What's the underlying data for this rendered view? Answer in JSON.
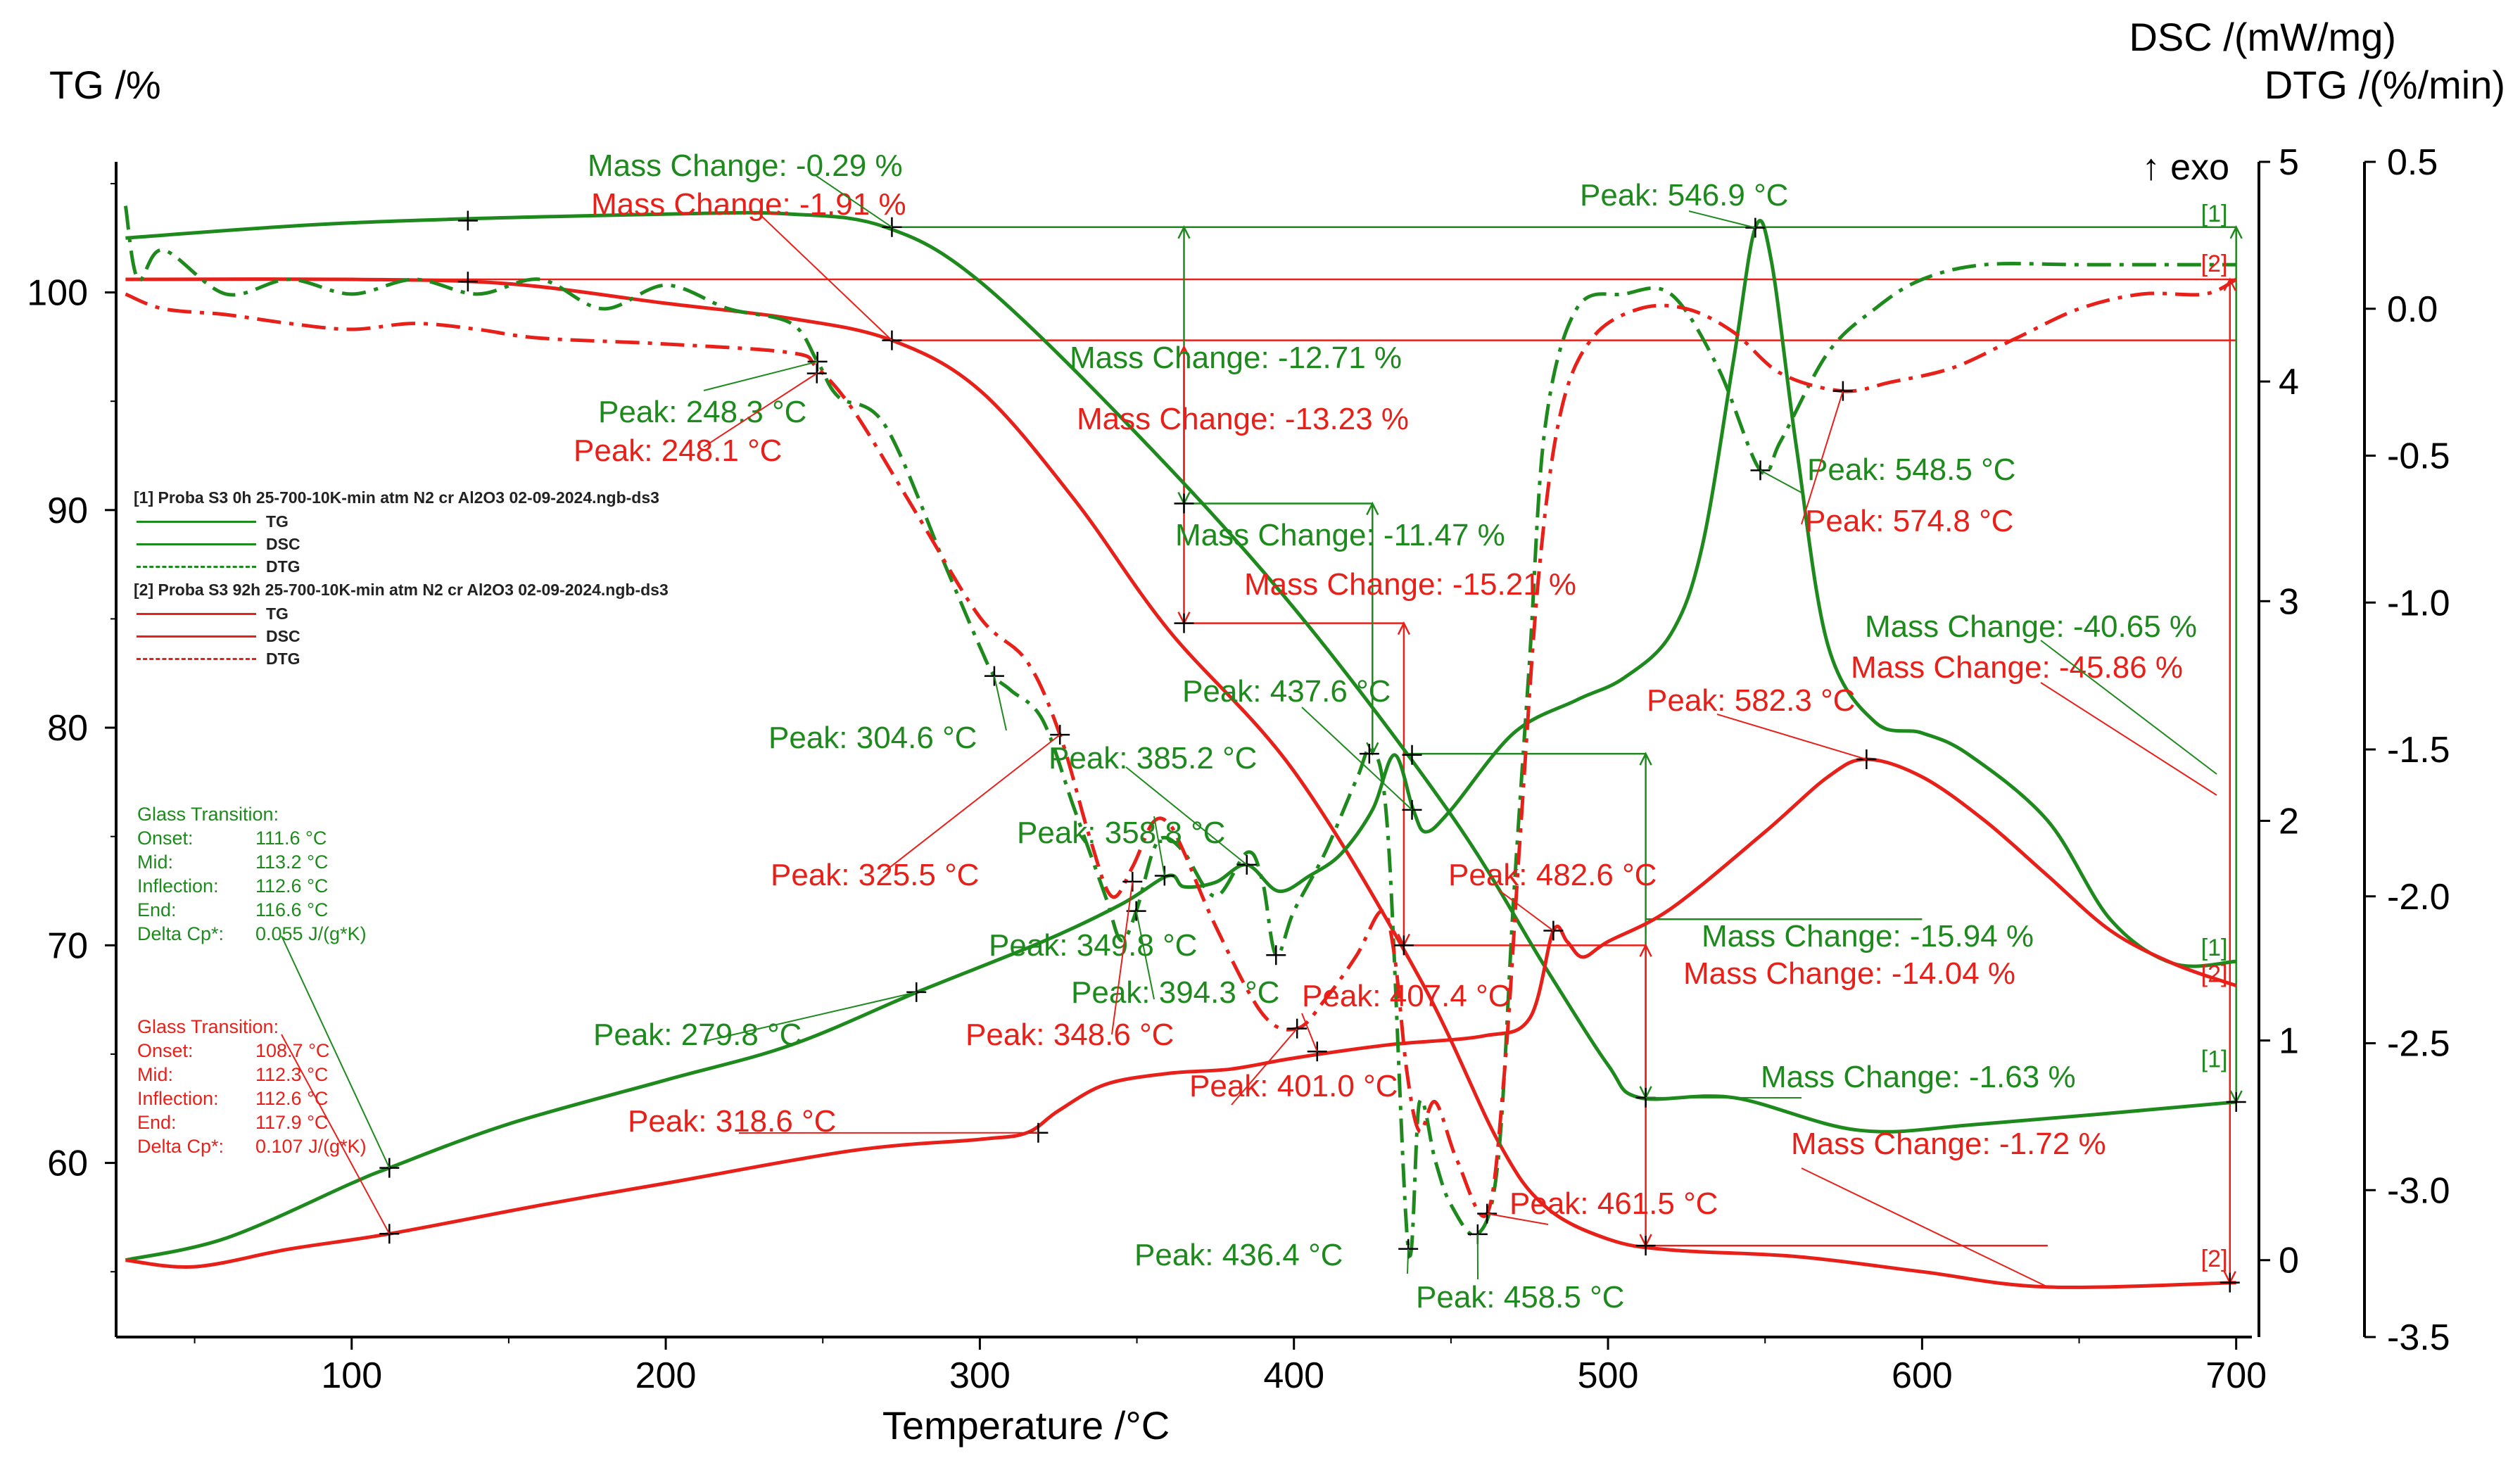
{
  "colors": {
    "green": "#1e8a1e",
    "red": "#e8201a",
    "axis": "#000000"
  },
  "chart_data": {
    "type": "line",
    "xlabel": "Temperature /°C",
    "x_ticks": [
      "100",
      "200",
      "300",
      "400",
      "500",
      "600",
      "700"
    ],
    "xlim": [
      25,
      705
    ],
    "axes": {
      "tg": {
        "label": "TG /%",
        "ylim": [
          52,
          106
        ],
        "ticks": [
          "60",
          "70",
          "80",
          "90",
          "100"
        ]
      },
      "dsc": {
        "label": "DSC /(mW/mg)",
        "exo": "↑ exo",
        "ylim": [
          -0.35,
          5.0
        ],
        "ticks": [
          "0",
          "1",
          "2",
          "3",
          "4",
          "5"
        ]
      },
      "dtg": {
        "label": "DTG /(%/min)",
        "ylim": [
          -3.5,
          0.5
        ],
        "ticks": [
          "0.5",
          "0.0",
          "-0.5",
          "-1.0",
          "-1.5",
          "-2.0",
          "-2.5",
          "-3.0",
          "-3.5"
        ]
      }
    },
    "curve_labels": {
      "s1_tg": "[1]",
      "s1_dsc": "[1]",
      "s1_dtg": "[1]",
      "s2_tg": "[2]",
      "s2_dsc": "[2]",
      "s2_dtg": "[2]"
    },
    "legend": {
      "s1_file": "[1] Proba S3 0h 25-700-10K-min atm N2 cr Al2O3 02-09-2024.ngb-ds3",
      "s2_file": "[2] Proba S3 92h 25-700-10K-min atm N2 cr Al2O3 02-09-2024.ngb-ds3",
      "tg": "TG",
      "dsc": "DSC",
      "dtg": "DTG"
    },
    "series": [
      {
        "name": "[1] TG",
        "axis": "tg",
        "color": "green",
        "style": "solid",
        "points": [
          [
            28,
            102.5
          ],
          [
            100,
            103.2
          ],
          [
            200,
            103.6
          ],
          [
            240,
            103.6
          ],
          [
            270,
            103.0
          ],
          [
            300,
            100.5
          ],
          [
            350,
            93.5
          ],
          [
            400,
            85.5
          ],
          [
            450,
            76.0
          ],
          [
            480,
            69.0
          ],
          [
            500,
            64.5
          ],
          [
            510,
            63.0
          ],
          [
            540,
            63.0
          ],
          [
            580,
            61.5
          ],
          [
            620,
            61.8
          ],
          [
            700,
            62.8
          ]
        ]
      },
      {
        "name": "[2] TG",
        "axis": "tg",
        "color": "red",
        "style": "solid",
        "points": [
          [
            28,
            100.6
          ],
          [
            100,
            100.6
          ],
          [
            150,
            100.4
          ],
          [
            200,
            99.5
          ],
          [
            240,
            98.8
          ],
          [
            272,
            97.8
          ],
          [
            300,
            95.5
          ],
          [
            330,
            90.5
          ],
          [
            360,
            84.5
          ],
          [
            400,
            78.0
          ],
          [
            440,
            68.5
          ],
          [
            465,
            61.0
          ],
          [
            480,
            58.0
          ],
          [
            500,
            56.5
          ],
          [
            520,
            56.0
          ],
          [
            560,
            55.7
          ],
          [
            600,
            55.0
          ],
          [
            640,
            54.3
          ],
          [
            700,
            54.5
          ]
        ]
      },
      {
        "name": "[1] DSC",
        "axis": "dsc",
        "color": "green",
        "style": "solid",
        "points": [
          [
            28,
            0.0
          ],
          [
            60,
            0.1
          ],
          [
            100,
            0.35
          ],
          [
            112,
            0.42
          ],
          [
            150,
            0.62
          ],
          [
            200,
            0.82
          ],
          [
            240,
            0.98
          ],
          [
            280,
            1.22
          ],
          [
            320,
            1.45
          ],
          [
            345,
            1.62
          ],
          [
            360,
            1.75
          ],
          [
            365,
            1.7
          ],
          [
            375,
            1.72
          ],
          [
            385,
            1.8
          ],
          [
            395,
            1.68
          ],
          [
            405,
            1.75
          ],
          [
            415,
            1.85
          ],
          [
            425,
            2.05
          ],
          [
            432,
            2.3
          ],
          [
            438,
            2.05
          ],
          [
            442,
            1.95
          ],
          [
            450,
            2.05
          ],
          [
            470,
            2.4
          ],
          [
            490,
            2.55
          ],
          [
            505,
            2.65
          ],
          [
            520,
            2.85
          ],
          [
            530,
            3.25
          ],
          [
            540,
            4.1
          ],
          [
            546.9,
            4.7
          ],
          [
            552,
            4.55
          ],
          [
            560,
            3.7
          ],
          [
            570,
            2.8
          ],
          [
            585,
            2.45
          ],
          [
            600,
            2.4
          ],
          [
            615,
            2.3
          ],
          [
            640,
            2.0
          ],
          [
            660,
            1.55
          ],
          [
            680,
            1.35
          ],
          [
            700,
            1.36
          ]
        ]
      },
      {
        "name": "[2] DSC",
        "axis": "dsc",
        "color": "red",
        "style": "solid",
        "points": [
          [
            28,
            0.0
          ],
          [
            50,
            -0.03
          ],
          [
            80,
            0.05
          ],
          [
            112,
            0.12
          ],
          [
            160,
            0.25
          ],
          [
            200,
            0.35
          ],
          [
            260,
            0.5
          ],
          [
            300,
            0.55
          ],
          [
            315,
            0.58
          ],
          [
            325,
            0.68
          ],
          [
            340,
            0.8
          ],
          [
            360,
            0.85
          ],
          [
            380,
            0.87
          ],
          [
            400,
            0.92
          ],
          [
            430,
            0.98
          ],
          [
            460,
            1.02
          ],
          [
            475,
            1.1
          ],
          [
            482.6,
            1.5
          ],
          [
            487,
            1.45
          ],
          [
            492,
            1.38
          ],
          [
            500,
            1.45
          ],
          [
            520,
            1.6
          ],
          [
            550,
            1.95
          ],
          [
            570,
            2.2
          ],
          [
            582.3,
            2.28
          ],
          [
            600,
            2.2
          ],
          [
            620,
            2.0
          ],
          [
            640,
            1.75
          ],
          [
            660,
            1.5
          ],
          [
            680,
            1.35
          ],
          [
            700,
            1.25
          ]
        ]
      },
      {
        "name": "[1] DTG",
        "axis": "dtg",
        "color": "green",
        "style": "dashdot",
        "points": [
          [
            28,
            0.35
          ],
          [
            32,
            0.1
          ],
          [
            40,
            0.2
          ],
          [
            60,
            0.05
          ],
          [
            80,
            0.1
          ],
          [
            100,
            0.05
          ],
          [
            120,
            0.1
          ],
          [
            140,
            0.05
          ],
          [
            160,
            0.1
          ],
          [
            180,
            0.0
          ],
          [
            200,
            0.08
          ],
          [
            220,
            0.0
          ],
          [
            240,
            -0.05
          ],
          [
            248.3,
            -0.18
          ],
          [
            255,
            -0.3
          ],
          [
            270,
            -0.4
          ],
          [
            290,
            -0.9
          ],
          [
            300,
            -1.15
          ],
          [
            304.6,
            -1.25
          ],
          [
            310,
            -1.3
          ],
          [
            320,
            -1.4
          ],
          [
            330,
            -1.7
          ],
          [
            340,
            -2.0
          ],
          [
            345,
            -2.15
          ],
          [
            349.8,
            -2.05
          ],
          [
            355,
            -1.85
          ],
          [
            358.8,
            -1.8
          ],
          [
            365,
            -1.85
          ],
          [
            375,
            -2.0
          ],
          [
            385.2,
            -1.85
          ],
          [
            390,
            -1.95
          ],
          [
            394.3,
            -2.2
          ],
          [
            400,
            -2.05
          ],
          [
            410,
            -1.85
          ],
          [
            420,
            -1.6
          ],
          [
            425,
            -1.5
          ],
          [
            430,
            -1.8
          ],
          [
            436.4,
            -3.2
          ],
          [
            440,
            -2.7
          ],
          [
            445,
            -2.9
          ],
          [
            450,
            -3.05
          ],
          [
            458.5,
            -3.15
          ],
          [
            465,
            -2.9
          ],
          [
            470,
            -2.0
          ],
          [
            475,
            -1.2
          ],
          [
            480,
            -0.4
          ],
          [
            490,
            0.0
          ],
          [
            505,
            0.05
          ],
          [
            520,
            0.05
          ],
          [
            535,
            -0.2
          ],
          [
            548.5,
            -0.55
          ],
          [
            555,
            -0.45
          ],
          [
            570,
            -0.15
          ],
          [
            585,
            0.0
          ],
          [
            600,
            0.1
          ],
          [
            620,
            0.15
          ],
          [
            650,
            0.15
          ],
          [
            680,
            0.15
          ],
          [
            700,
            0.15
          ]
        ]
      },
      {
        "name": "[2] DTG",
        "axis": "dtg",
        "color": "red",
        "style": "dashdot",
        "points": [
          [
            28,
            0.05
          ],
          [
            40,
            0.0
          ],
          [
            60,
            -0.02
          ],
          [
            80,
            -0.05
          ],
          [
            100,
            -0.07
          ],
          [
            120,
            -0.05
          ],
          [
            140,
            -0.07
          ],
          [
            160,
            -0.1
          ],
          [
            200,
            -0.12
          ],
          [
            240,
            -0.15
          ],
          [
            248.1,
            -0.2
          ],
          [
            260,
            -0.35
          ],
          [
            280,
            -0.7
          ],
          [
            300,
            -1.05
          ],
          [
            315,
            -1.2
          ],
          [
            325.5,
            -1.45
          ],
          [
            335,
            -1.8
          ],
          [
            342,
            -2.0
          ],
          [
            348.6,
            -1.9
          ],
          [
            355,
            -1.75
          ],
          [
            360,
            -1.75
          ],
          [
            365,
            -1.85
          ],
          [
            375,
            -2.1
          ],
          [
            390,
            -2.4
          ],
          [
            401.0,
            -2.45
          ],
          [
            410,
            -2.35
          ],
          [
            420,
            -2.2
          ],
          [
            428,
            -2.05
          ],
          [
            432,
            -2.2
          ],
          [
            436,
            -2.6
          ],
          [
            440,
            -2.8
          ],
          [
            445,
            -2.7
          ],
          [
            452,
            -2.9
          ],
          [
            461.5,
            -3.08
          ],
          [
            467,
            -2.6
          ],
          [
            472,
            -1.8
          ],
          [
            478,
            -0.9
          ],
          [
            485,
            -0.35
          ],
          [
            495,
            -0.1
          ],
          [
            510,
            0.0
          ],
          [
            525,
            0.0
          ],
          [
            540,
            -0.08
          ],
          [
            555,
            -0.22
          ],
          [
            574.8,
            -0.28
          ],
          [
            590,
            -0.25
          ],
          [
            610,
            -0.2
          ],
          [
            630,
            -0.1
          ],
          [
            650,
            0.0
          ],
          [
            670,
            0.05
          ],
          [
            690,
            0.05
          ],
          [
            700,
            0.1
          ]
        ]
      }
    ],
    "annotations": [
      {
        "text": "Mass Change: -0.29 %",
        "color": "green"
      },
      {
        "text": "Mass Change: -1.91 %",
        "color": "red"
      },
      {
        "text": "Peak: 546.9 °C",
        "color": "green"
      },
      {
        "text": "Mass Change: -12.71 %",
        "color": "green"
      },
      {
        "text": "Mass Change: -13.23 %",
        "color": "red"
      },
      {
        "text": "Peak: 248.3 °C",
        "color": "green"
      },
      {
        "text": "Peak: 248.1 °C",
        "color": "red"
      },
      {
        "text": "Peak: 548.5 °C",
        "color": "green"
      },
      {
        "text": "Peak: 574.8 °C",
        "color": "red"
      },
      {
        "text": "Mass Change: -11.47 %",
        "color": "green"
      },
      {
        "text": "Mass Change: -15.21 %",
        "color": "red"
      },
      {
        "text": "Mass Change: -40.65 %",
        "color": "green"
      },
      {
        "text": "Mass Change: -45.86 %",
        "color": "red"
      },
      {
        "text": "Peak: 437.6 °C",
        "color": "green"
      },
      {
        "text": "Peak: 582.3 °C",
        "color": "red"
      },
      {
        "text": "Peak: 304.6 °C",
        "color": "green"
      },
      {
        "text": "Peak: 385.2 °C",
        "color": "green"
      },
      {
        "text": "Peak: 358.8 °C",
        "color": "green"
      },
      {
        "text": "Peak: 325.5 °C",
        "color": "red"
      },
      {
        "text": "Peak: 482.6 °C",
        "color": "red"
      },
      {
        "text": "Mass Change: -15.94 %",
        "color": "green"
      },
      {
        "text": "Mass Change: -14.04 %",
        "color": "red"
      },
      {
        "text": "Peak: 349.8 °C",
        "color": "green"
      },
      {
        "text": "Peak: 394.3 °C",
        "color": "green"
      },
      {
        "text": "Peak: 407.4 °C",
        "color": "red"
      },
      {
        "text": "Peak: 279.8 °C",
        "color": "green"
      },
      {
        "text": "Peak: 348.6 °C",
        "color": "red"
      },
      {
        "text": "Mass Change: -1.63 %",
        "color": "green"
      },
      {
        "text": "Peak: 401.0 °C",
        "color": "red"
      },
      {
        "text": "Peak: 318.6 °C",
        "color": "red"
      },
      {
        "text": "Mass Change: -1.72 %",
        "color": "red"
      },
      {
        "text": "Peak: 461.5 °C",
        "color": "red"
      },
      {
        "text": "Peak: 436.4 °C",
        "color": "green"
      },
      {
        "text": "Peak: 458.5 °C",
        "color": "green"
      }
    ],
    "glass_transitions": [
      {
        "color": "green",
        "title": "Glass Transition:",
        "rows": [
          [
            "Onset:",
            "111.6 °C"
          ],
          [
            "Mid:",
            "113.2 °C"
          ],
          [
            "Inflection:",
            "112.6 °C"
          ],
          [
            "End:",
            "116.6 °C"
          ],
          [
            "Delta Cp*:",
            "0.055 J/(g*K)"
          ]
        ]
      },
      {
        "color": "red",
        "title": "Glass Transition:",
        "rows": [
          [
            "Onset:",
            "108.7 °C"
          ],
          [
            "Mid:",
            "112.3 °C"
          ],
          [
            "Inflection:",
            "112.6 °C"
          ],
          [
            "End:",
            "117.9 °C"
          ],
          [
            "Delta Cp*:",
            "0.107 J/(g*K)"
          ]
        ]
      }
    ]
  }
}
